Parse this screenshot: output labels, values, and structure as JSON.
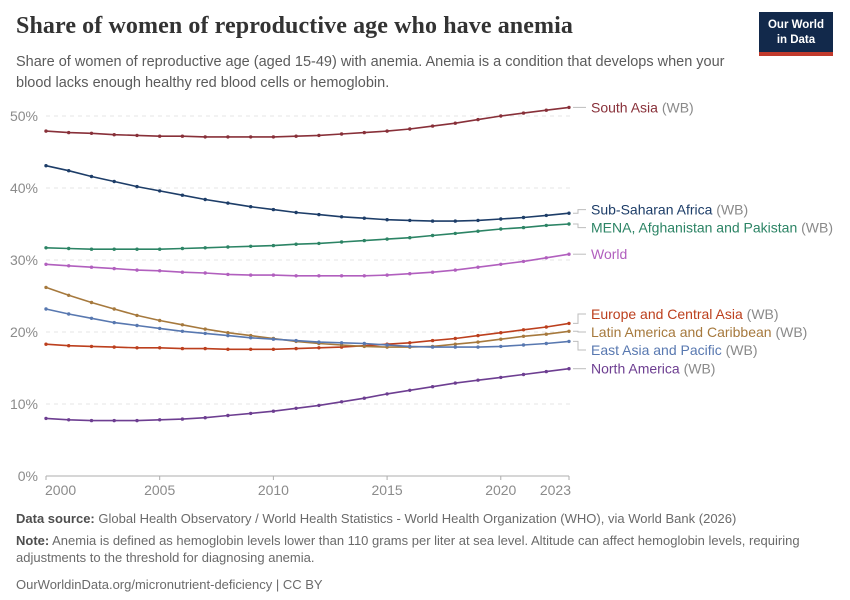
{
  "header": {
    "title": "Share of women of reproductive age who have anemia",
    "subtitle": "Share of women of reproductive age (aged 15-49) with anemia. Anemia is a condition that develops when your blood lacks enough healthy red blood cells or hemoglobin.",
    "logo_line1": "Our World",
    "logo_line2": "in Data"
  },
  "chart_data": {
    "type": "line",
    "title": "Share of women of reproductive age who have anemia",
    "x": [
      2000,
      2001,
      2002,
      2003,
      2004,
      2005,
      2006,
      2007,
      2008,
      2009,
      2010,
      2011,
      2012,
      2013,
      2014,
      2015,
      2016,
      2017,
      2018,
      2019,
      2020,
      2021,
      2022,
      2023
    ],
    "x_ticks": [
      2000,
      2005,
      2010,
      2015,
      2020,
      2023
    ],
    "x_tick_labels": [
      "2000",
      "2005",
      "2010",
      "2015",
      "2020",
      "2023"
    ],
    "y_ticks": [
      0,
      10,
      20,
      30,
      40,
      50
    ],
    "y_tick_labels": [
      "0%",
      "10%",
      "20%",
      "30%",
      "40%",
      "50%"
    ],
    "xlim": [
      2000,
      2023
    ],
    "ylim": [
      0,
      53
    ],
    "grid": "horizontal-dashed",
    "legend": "labels-at-line-ends",
    "label_suffix_color": "#8a8a8a",
    "series": [
      {
        "name": "South Asia",
        "wb_suffix": " (WB)",
        "color": "#883039",
        "values": [
          47.9,
          47.7,
          47.6,
          47.4,
          47.3,
          47.2,
          47.2,
          47.1,
          47.1,
          47.1,
          47.1,
          47.2,
          47.3,
          47.5,
          47.7,
          47.9,
          48.2,
          48.6,
          49.0,
          49.5,
          50.0,
          50.4,
          50.8,
          51.2
        ]
      },
      {
        "name": "Sub-Saharan Africa",
        "wb_suffix": " (WB)",
        "color": "#1d3d68",
        "values": [
          43.1,
          42.4,
          41.6,
          40.9,
          40.2,
          39.6,
          39.0,
          38.4,
          37.9,
          37.4,
          37.0,
          36.6,
          36.3,
          36.0,
          35.8,
          35.6,
          35.5,
          35.4,
          35.4,
          35.5,
          35.7,
          35.9,
          36.2,
          36.5
        ]
      },
      {
        "name": "MENA, Afghanistan and Pakistan",
        "wb_suffix": " (WB)",
        "color": "#2c8465",
        "values": [
          31.7,
          31.6,
          31.5,
          31.5,
          31.5,
          31.5,
          31.6,
          31.7,
          31.8,
          31.9,
          32.0,
          32.2,
          32.3,
          32.5,
          32.7,
          32.9,
          33.1,
          33.4,
          33.7,
          34.0,
          34.3,
          34.5,
          34.8,
          35.0
        ]
      },
      {
        "name": "World",
        "wb_suffix": "",
        "color": "#b15fbe",
        "values": [
          29.4,
          29.2,
          29.0,
          28.8,
          28.6,
          28.5,
          28.3,
          28.2,
          28.0,
          27.9,
          27.9,
          27.8,
          27.8,
          27.8,
          27.8,
          27.9,
          28.1,
          28.3,
          28.6,
          29.0,
          29.4,
          29.8,
          30.3,
          30.8
        ]
      },
      {
        "name": "Europe and Central Asia",
        "wb_suffix": " (WB)",
        "color": "#bc3f1d",
        "values": [
          18.3,
          18.1,
          18.0,
          17.9,
          17.8,
          17.8,
          17.7,
          17.7,
          17.6,
          17.6,
          17.6,
          17.7,
          17.8,
          17.9,
          18.1,
          18.3,
          18.5,
          18.8,
          19.1,
          19.5,
          19.9,
          20.3,
          20.7,
          21.2
        ]
      },
      {
        "name": "Latin America and Caribbean",
        "wb_suffix": " (WB)",
        "color": "#a6793d",
        "values": [
          26.2,
          25.1,
          24.1,
          23.2,
          22.3,
          21.6,
          21.0,
          20.4,
          19.9,
          19.5,
          19.1,
          18.7,
          18.4,
          18.2,
          18.0,
          17.9,
          17.9,
          18.0,
          18.3,
          18.6,
          19.0,
          19.4,
          19.7,
          20.1
        ]
      },
      {
        "name": "East Asia and Pacific",
        "wb_suffix": " (WB)",
        "color": "#5878b0",
        "values": [
          23.2,
          22.5,
          21.9,
          21.3,
          20.9,
          20.5,
          20.1,
          19.8,
          19.5,
          19.2,
          19.0,
          18.8,
          18.6,
          18.5,
          18.4,
          18.2,
          18.0,
          17.9,
          17.9,
          17.9,
          18.0,
          18.2,
          18.4,
          18.7
        ]
      },
      {
        "name": "North America",
        "wb_suffix": " (WB)",
        "color": "#6d3e91",
        "values": [
          8.0,
          7.8,
          7.7,
          7.7,
          7.7,
          7.8,
          7.9,
          8.1,
          8.4,
          8.7,
          9.0,
          9.4,
          9.8,
          10.3,
          10.8,
          11.4,
          11.9,
          12.4,
          12.9,
          13.3,
          13.7,
          14.1,
          14.5,
          14.9
        ]
      }
    ]
  },
  "footer": {
    "source_label": "Data source:",
    "source_text": "Global Health Observatory / World Health Statistics - World Health Organization (WHO), via World Bank (2026)",
    "note_label": "Note:",
    "note_text": "Anemia is defined as hemoglobin levels lower than 110 grams per liter at sea level. Altitude can affect hemoglobin levels, requiring adjustments to the threshold for diagnosing anemia.",
    "citation": "OurWorldinData.org/micronutrient-deficiency | CC BY"
  }
}
